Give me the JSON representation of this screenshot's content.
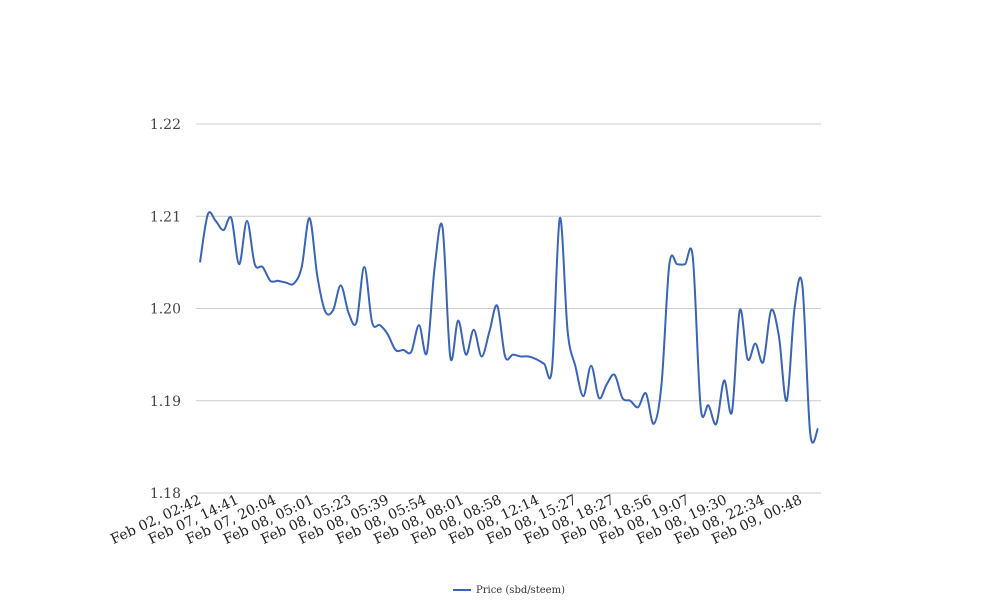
{
  "chart_data": {
    "type": "line",
    "ylim": [
      1.18,
      1.22
    ],
    "yticks": [
      1.22,
      1.21,
      1.2,
      1.19,
      1.18
    ],
    "ytick_labels": [
      "1.22",
      "1.21",
      "1.20",
      "1.19",
      "1.18"
    ],
    "grid": true,
    "legend_position": "bottom-center",
    "line_color": "#3a64b8",
    "grid_color": "#cccccc",
    "x_tick_labels": [
      "Feb 02, 02:42",
      "Feb 07, 14:41",
      "Feb 07, 20:04",
      "Feb 08, 05:01",
      "Feb 08, 05:23",
      "Feb 08, 05:39",
      "Feb 08, 05:54",
      "Feb 08, 08:01",
      "Feb 08, 08:58",
      "Feb 08, 12:14",
      "Feb 08, 15:27",
      "Feb 08, 18:27",
      "Feb 08, 18:56",
      "Feb 08, 19:07",
      "Feb 08, 19:30",
      "Feb 08, 22:34",
      "Feb 09, 00:48"
    ],
    "series": [
      {
        "name": "Price (sbd/steem)",
        "values": [
          1.205,
          1.2102,
          1.2095,
          1.2085,
          1.2098,
          1.2048,
          1.2095,
          1.2048,
          1.2045,
          1.203,
          1.203,
          1.2028,
          1.2027,
          1.2045,
          1.2098,
          1.2035,
          1.1997,
          1.1998,
          1.2025,
          1.1995,
          1.1985,
          1.2045,
          1.1985,
          1.1982,
          1.1972,
          1.1955,
          1.1955,
          1.1953,
          1.1982,
          1.1952,
          1.2045,
          1.2088,
          1.1947,
          1.1987,
          1.195,
          1.1977,
          1.1948,
          1.1975,
          1.2003,
          1.1948,
          1.195,
          1.1948,
          1.1948,
          1.1945,
          1.194,
          1.1935,
          1.2098,
          1.1975,
          1.1937,
          1.1905,
          1.1938,
          1.1903,
          1.1918,
          1.1928,
          1.1903,
          1.19,
          1.1893,
          1.1908,
          1.1875,
          1.1918,
          1.2048,
          1.2048,
          1.2048,
          1.2055,
          1.1893,
          1.1895,
          1.1875,
          1.1922,
          1.1888,
          1.1998,
          1.1945,
          1.1962,
          1.1942,
          1.1998,
          1.197,
          1.19,
          1.2,
          1.2025,
          1.1865,
          1.187
        ]
      }
    ]
  }
}
